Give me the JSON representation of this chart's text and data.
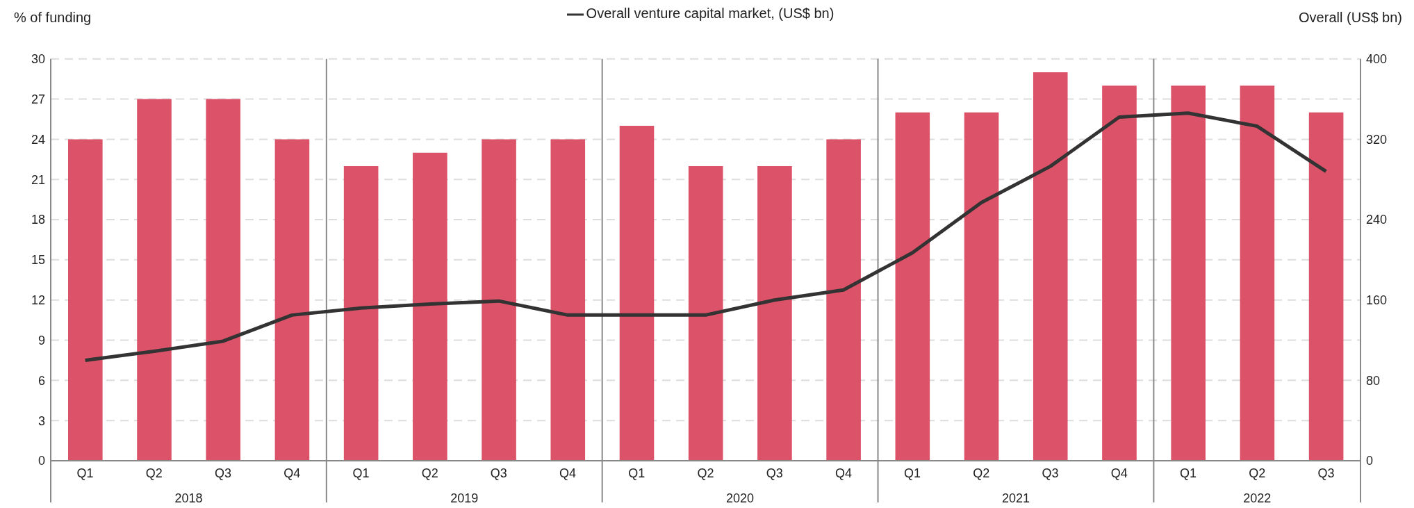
{
  "chart_data": {
    "type": "bar",
    "xlabel": null,
    "ylabel": "% of funding",
    "y2label": "Overall (US$ bn)",
    "categories": [
      "Q1",
      "Q2",
      "Q3",
      "Q4",
      "Q1",
      "Q2",
      "Q3",
      "Q4",
      "Q1",
      "Q2",
      "Q3",
      "Q4",
      "Q1",
      "Q2",
      "Q3",
      "Q4",
      "Q1",
      "Q2",
      "Q3"
    ],
    "annotations": [
      "2018",
      "2019",
      "2020",
      "2021",
      "2022"
    ],
    "series": [
      {
        "color": "#dc5269",
        "values": [
          24,
          27,
          27,
          24,
          22,
          23,
          24,
          24,
          25,
          22,
          22,
          24,
          26,
          26,
          29,
          28,
          28,
          28,
          26
        ]
      },
      {
        "type": "line",
        "name": "Overall venture capital market, (US$ bn)",
        "color": "#333333",
        "axis": "y2",
        "values": [
          100,
          109,
          119,
          145,
          152,
          156,
          159,
          145,
          145,
          145,
          160,
          170,
          207,
          257,
          293,
          342,
          346,
          333,
          288
        ]
      }
    ],
    "ylim": [
      0,
      30
    ],
    "yticks": [
      0,
      3,
      6,
      9,
      12,
      15,
      18,
      21,
      24,
      27,
      30
    ],
    "y2lim": [
      0,
      400
    ],
    "y2ticks": [
      0,
      80,
      160,
      240,
      320,
      400
    ],
    "grid": "y",
    "legend": "top",
    "marker": "none",
    "line_style": "solid"
  }
}
